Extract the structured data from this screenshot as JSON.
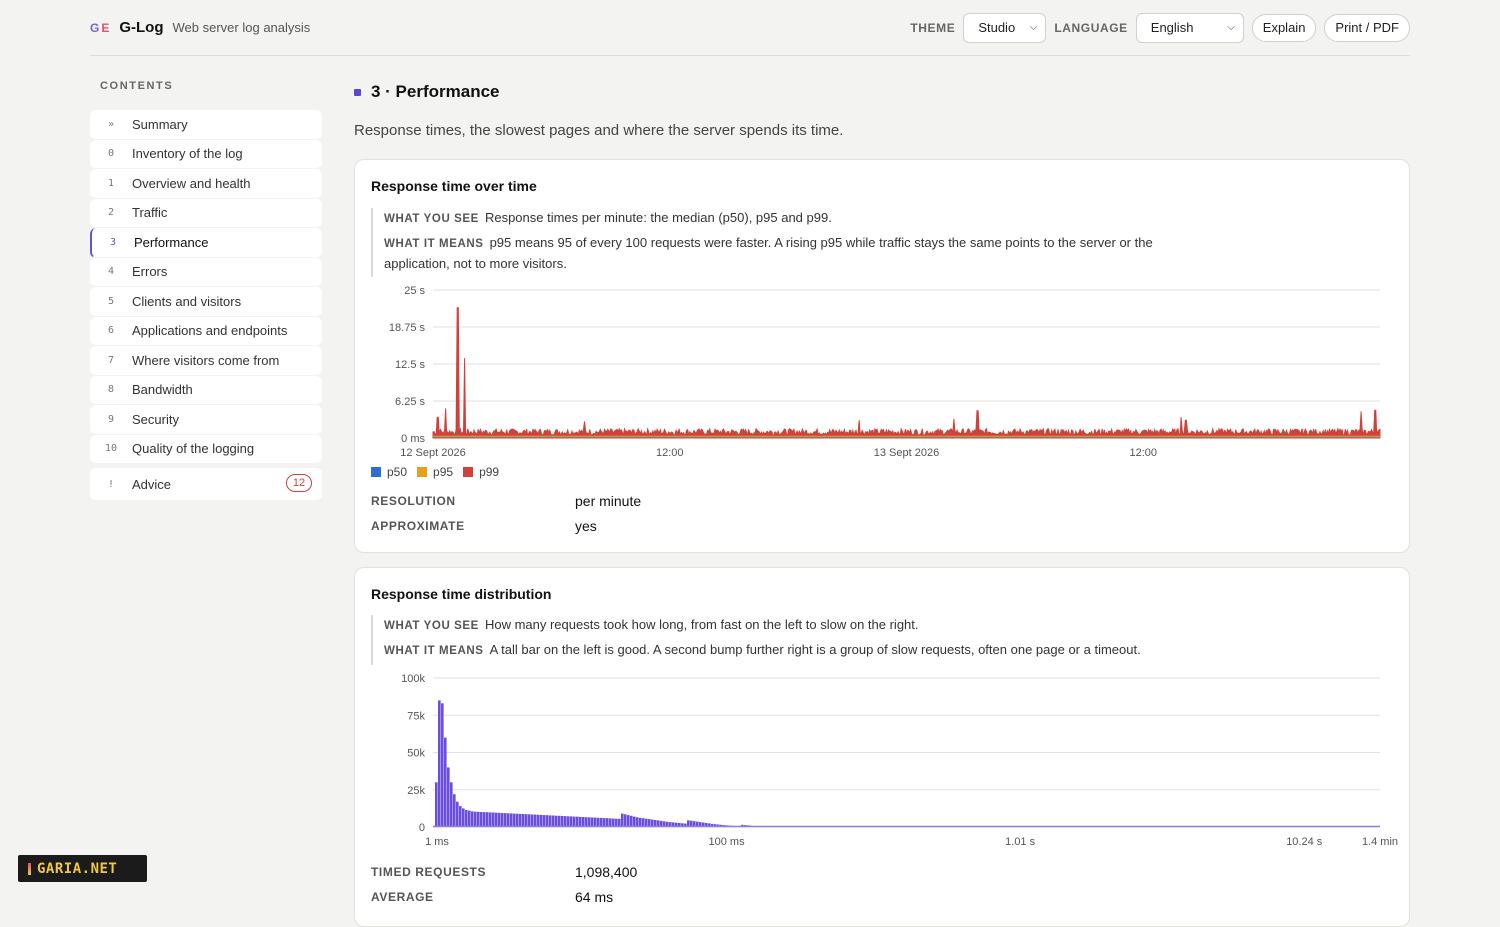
{
  "header": {
    "logo_g": "G",
    "logo_e": "E",
    "app_name": "G-Log",
    "app_subtitle": "Web server log analysis",
    "theme_label": "THEME",
    "theme_value": "Studio",
    "language_label": "LANGUAGE",
    "language_value": "English",
    "explain_button": "Explain",
    "print_button": "Print / PDF"
  },
  "sidebar": {
    "title": "CONTENTS",
    "items": [
      {
        "num": "»",
        "label": "Summary"
      },
      {
        "num": "0",
        "label": "Inventory of the log"
      },
      {
        "num": "1",
        "label": "Overview and health"
      },
      {
        "num": "2",
        "label": "Traffic"
      },
      {
        "num": "3",
        "label": "Performance",
        "active": true
      },
      {
        "num": "4",
        "label": "Errors"
      },
      {
        "num": "5",
        "label": "Clients and visitors"
      },
      {
        "num": "6",
        "label": "Applications and endpoints"
      },
      {
        "num": "7",
        "label": "Where visitors come from"
      },
      {
        "num": "8",
        "label": "Bandwidth"
      },
      {
        "num": "9",
        "label": "Security"
      },
      {
        "num": "10",
        "label": "Quality of the logging"
      },
      {
        "num": "!",
        "label": "Advice",
        "badge": "12"
      }
    ]
  },
  "section": {
    "title": "3 · Performance",
    "description": "Response times, the slowest pages and where the server spends its time."
  },
  "card1": {
    "title": "Response time over time",
    "see_label": "WHAT YOU SEE",
    "see_text": "Response times per minute: the median (p50), p95 and p99.",
    "means_label": "WHAT IT MEANS",
    "means_text": "p95 means 95 of every 100 requests were faster. A rising p95 while traffic stays the same points to the server or the application, not to more visitors.",
    "resolution_label": "RESOLUTION",
    "resolution_value": "per minute",
    "approx_label": "APPROXIMATE",
    "approx_value": "yes"
  },
  "card2": {
    "title": "Response time distribution",
    "see_label": "WHAT YOU SEE",
    "see_text": "How many requests took how long, from fast on the left to slow on the right.",
    "means_label": "WHAT IT MEANS",
    "means_text": "A tall bar on the left is good. A second bump further right is a group of slow requests, often one page or a timeout.",
    "timed_label": "TIMED REQUESTS",
    "timed_value": "1,098,400",
    "avg_label": "AVERAGE",
    "avg_value": "64 ms"
  },
  "watermark": "GARIA.NET",
  "chart_data": [
    {
      "type": "line",
      "title": "Response time over time",
      "y_ticks": [
        "0 ms",
        "6.25 s",
        "12.5 s",
        "18.75 s",
        "25 s"
      ],
      "ylim": [
        0,
        25
      ],
      "y_unit": "s",
      "x_ticks": [
        "12 Sept 2026",
        "12:00",
        "13 Sept 2026",
        "12:00"
      ],
      "legend": [
        {
          "name": "p50",
          "color": "#2d6fd2"
        },
        {
          "name": "p95",
          "color": "#e5a11a"
        },
        {
          "name": "p99",
          "color": "#d0413c"
        }
      ],
      "series": [
        {
          "name": "p50",
          "baseline": 0.1
        },
        {
          "name": "p95",
          "baseline": 0.4
        },
        {
          "name": "p99",
          "baseline": 1.2,
          "peaks": [
            {
              "x": 0.005,
              "y": 3.5
            },
            {
              "x": 0.013,
              "y": 5.0
            },
            {
              "x": 0.026,
              "y": 22.0
            },
            {
              "x": 0.033,
              "y": 13.5
            },
            {
              "x": 0.16,
              "y": 2.8
            },
            {
              "x": 0.45,
              "y": 3.0
            },
            {
              "x": 0.55,
              "y": 3.2
            },
            {
              "x": 0.575,
              "y": 4.6
            },
            {
              "x": 0.79,
              "y": 3.5
            },
            {
              "x": 0.795,
              "y": 3.0
            },
            {
              "x": 0.98,
              "y": 4.5
            },
            {
              "x": 0.995,
              "y": 4.7
            }
          ]
        }
      ],
      "legend_position": "bottom-left",
      "grid": true
    },
    {
      "type": "bar",
      "title": "Response time distribution",
      "y_ticks": [
        "0",
        "25k",
        "50k",
        "75k",
        "100k"
      ],
      "ylim": [
        0,
        100000
      ],
      "x_ticks": [
        "1 ms",
        "100 ms",
        "1.01 s",
        "10.24 s",
        "1.4 min"
      ],
      "x_scale": "log",
      "color": "#6a4ee0",
      "values": [
        30000,
        85000,
        83000,
        60000,
        40000,
        30000,
        22000,
        17000,
        14000,
        12500,
        11500,
        11000,
        10500,
        10300,
        10200,
        10100,
        10000,
        9900,
        9800,
        9700,
        9600,
        9500,
        9400,
        9300,
        9200,
        9100,
        9000,
        8900,
        8800,
        8700,
        8600,
        8500,
        8400,
        8300,
        8200,
        8100,
        8000,
        7900,
        7800,
        7700,
        7600,
        7500,
        7400,
        7300,
        7200,
        7100,
        7000,
        6900,
        6800,
        6700,
        6600,
        6500,
        6400,
        6300,
        6200,
        6100,
        6000,
        5900,
        5800,
        5700,
        5600,
        5500,
        9000,
        8500,
        8000,
        7500,
        7000,
        6500,
        6200,
        5900,
        5600,
        5300,
        5000,
        4700,
        4400,
        4100,
        3800,
        3500,
        3300,
        3100,
        2900,
        2700,
        2500,
        2300,
        4500,
        4200,
        3900,
        3600,
        3300,
        3000,
        2700,
        2400,
        2100,
        1900,
        1700,
        1500,
        1300,
        1100,
        900,
        800,
        700,
        600,
        1500,
        1300,
        1100,
        900,
        700,
        500,
        400,
        300,
        200,
        150,
        100
      ]
    }
  ]
}
